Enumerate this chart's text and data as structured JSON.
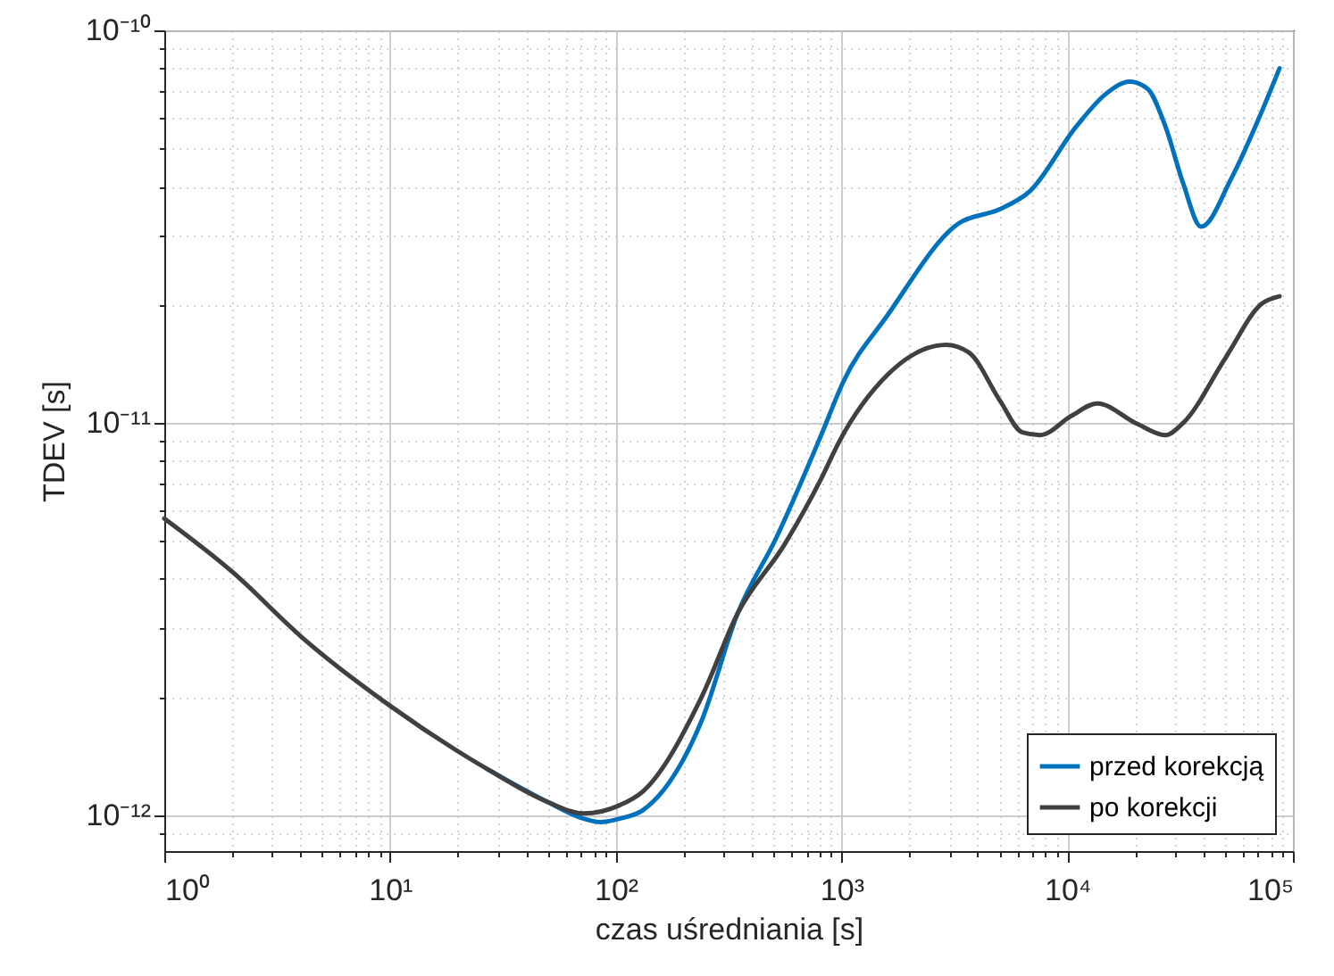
{
  "chart_data": {
    "type": "line",
    "xlabel": "czas uśredniania [s]",
    "ylabel": "TDEV [s]",
    "log": "xy",
    "grid": true,
    "legend": "bottom right",
    "line_style": "solid",
    "marker": "none",
    "xlim": [
      1,
      100000
    ],
    "ylim": [
      8.1e-13,
      1e-10
    ],
    "xticks": [
      {
        "value": 1,
        "label": "10⁰"
      },
      {
        "value": 2,
        "label": null
      },
      {
        "value": 3,
        "label": null
      },
      {
        "value": 4,
        "label": null
      },
      {
        "value": 5,
        "label": null
      },
      {
        "value": 6,
        "label": null
      },
      {
        "value": 7,
        "label": null
      },
      {
        "value": 8,
        "label": null
      },
      {
        "value": 9,
        "label": null
      },
      {
        "value": 10,
        "label": "10¹"
      },
      {
        "value": 20,
        "label": null
      },
      {
        "value": 30,
        "label": null
      },
      {
        "value": 40,
        "label": null
      },
      {
        "value": 50,
        "label": null
      },
      {
        "value": 60,
        "label": null
      },
      {
        "value": 70,
        "label": null
      },
      {
        "value": 80,
        "label": null
      },
      {
        "value": 90,
        "label": null
      },
      {
        "value": 100,
        "label": "10²"
      },
      {
        "value": 200,
        "label": null
      },
      {
        "value": 300,
        "label": null
      },
      {
        "value": 400,
        "label": null
      },
      {
        "value": 500,
        "label": null
      },
      {
        "value": 600,
        "label": null
      },
      {
        "value": 700,
        "label": null
      },
      {
        "value": 800,
        "label": null
      },
      {
        "value": 900,
        "label": null
      },
      {
        "value": 1000,
        "label": "10³"
      },
      {
        "value": 2000,
        "label": null
      },
      {
        "value": 3000,
        "label": null
      },
      {
        "value": 4000,
        "label": null
      },
      {
        "value": 5000,
        "label": null
      },
      {
        "value": 6000,
        "label": null
      },
      {
        "value": 7000,
        "label": null
      },
      {
        "value": 8000,
        "label": null
      },
      {
        "value": 9000,
        "label": null
      },
      {
        "value": 10000,
        "label": "10⁴"
      },
      {
        "value": 20000,
        "label": null
      },
      {
        "value": 30000,
        "label": null
      },
      {
        "value": 40000,
        "label": null
      },
      {
        "value": 50000,
        "label": null
      },
      {
        "value": 60000,
        "label": null
      },
      {
        "value": 70000,
        "label": null
      },
      {
        "value": 80000,
        "label": null
      },
      {
        "value": 90000,
        "label": null
      },
      {
        "value": 100000,
        "label": "10⁵"
      }
    ],
    "yticks": [
      {
        "value": 9e-13,
        "label": null
      },
      {
        "value": 1e-12,
        "label": "10⁻¹²"
      },
      {
        "value": 2e-12,
        "label": null
      },
      {
        "value": 3e-12,
        "label": null
      },
      {
        "value": 4e-12,
        "label": null
      },
      {
        "value": 5e-12,
        "label": null
      },
      {
        "value": 6e-12,
        "label": null
      },
      {
        "value": 7e-12,
        "label": null
      },
      {
        "value": 8e-12,
        "label": null
      },
      {
        "value": 9e-12,
        "label": null
      },
      {
        "value": 1e-11,
        "label": "10⁻¹¹"
      },
      {
        "value": 2e-11,
        "label": null
      },
      {
        "value": 3e-11,
        "label": null
      },
      {
        "value": 4e-11,
        "label": null
      },
      {
        "value": 5e-11,
        "label": null
      },
      {
        "value": 6e-11,
        "label": null
      },
      {
        "value": 7e-11,
        "label": null
      },
      {
        "value": 8e-11,
        "label": null
      },
      {
        "value": 9e-11,
        "label": null
      },
      {
        "value": 1e-10,
        "label": "10⁻¹⁰"
      }
    ],
    "series": [
      {
        "name": "przed korekcją",
        "color": "#0072bd",
        "x": [
          27,
          50,
          72,
          86,
          104,
          132,
          240,
          347,
          515,
          813,
          1024,
          1590,
          3300,
          5030,
          6830,
          11000,
          14900,
          18900,
          22700,
          27200,
          32700,
          39200,
          53300,
          72700,
          87200
        ],
        "values": [
          1.31e-12,
          1.08e-12,
          9.8e-13,
          9.6e-13,
          9.8e-13,
          1.03e-12,
          1.74e-12,
          3.27e-12,
          5.1e-12,
          9.3e-12,
          1.28e-11,
          1.87e-11,
          3.22e-11,
          3.5e-11,
          3.89e-11,
          5.7e-11,
          6.9e-11,
          7.4e-11,
          7.1e-11,
          5.7e-11,
          4.06e-11,
          3.16e-11,
          4.19e-11,
          6.2e-11,
          8e-11
        ]
      },
      {
        "name": "po korekcji",
        "color": "#404040",
        "x": [
          1,
          2,
          4.1,
          10,
          27,
          50,
          72,
          104,
          132,
          240,
          347,
          560,
          813,
          977,
          1590,
          2900,
          3670,
          5030,
          6330,
          7600,
          10400,
          13600,
          20300,
          27200,
          32700,
          50500,
          72700,
          87200
        ],
        "values": [
          5.7e-12,
          4.17e-12,
          2.83e-12,
          1.9e-12,
          1.31e-12,
          1.08e-12,
          1.01e-12,
          1.06e-12,
          1.15e-12,
          2e-12,
          3.27e-12,
          4.9e-12,
          7.2e-12,
          8.95e-12,
          1.32e-11,
          1.58e-11,
          1.51e-11,
          1.14e-11,
          9.45e-12,
          9.3e-12,
          1.04e-11,
          1.12e-11,
          9.95e-12,
          9.3e-12,
          1e-11,
          1.47e-11,
          2.01e-11,
          2.1e-11
        ]
      }
    ]
  }
}
